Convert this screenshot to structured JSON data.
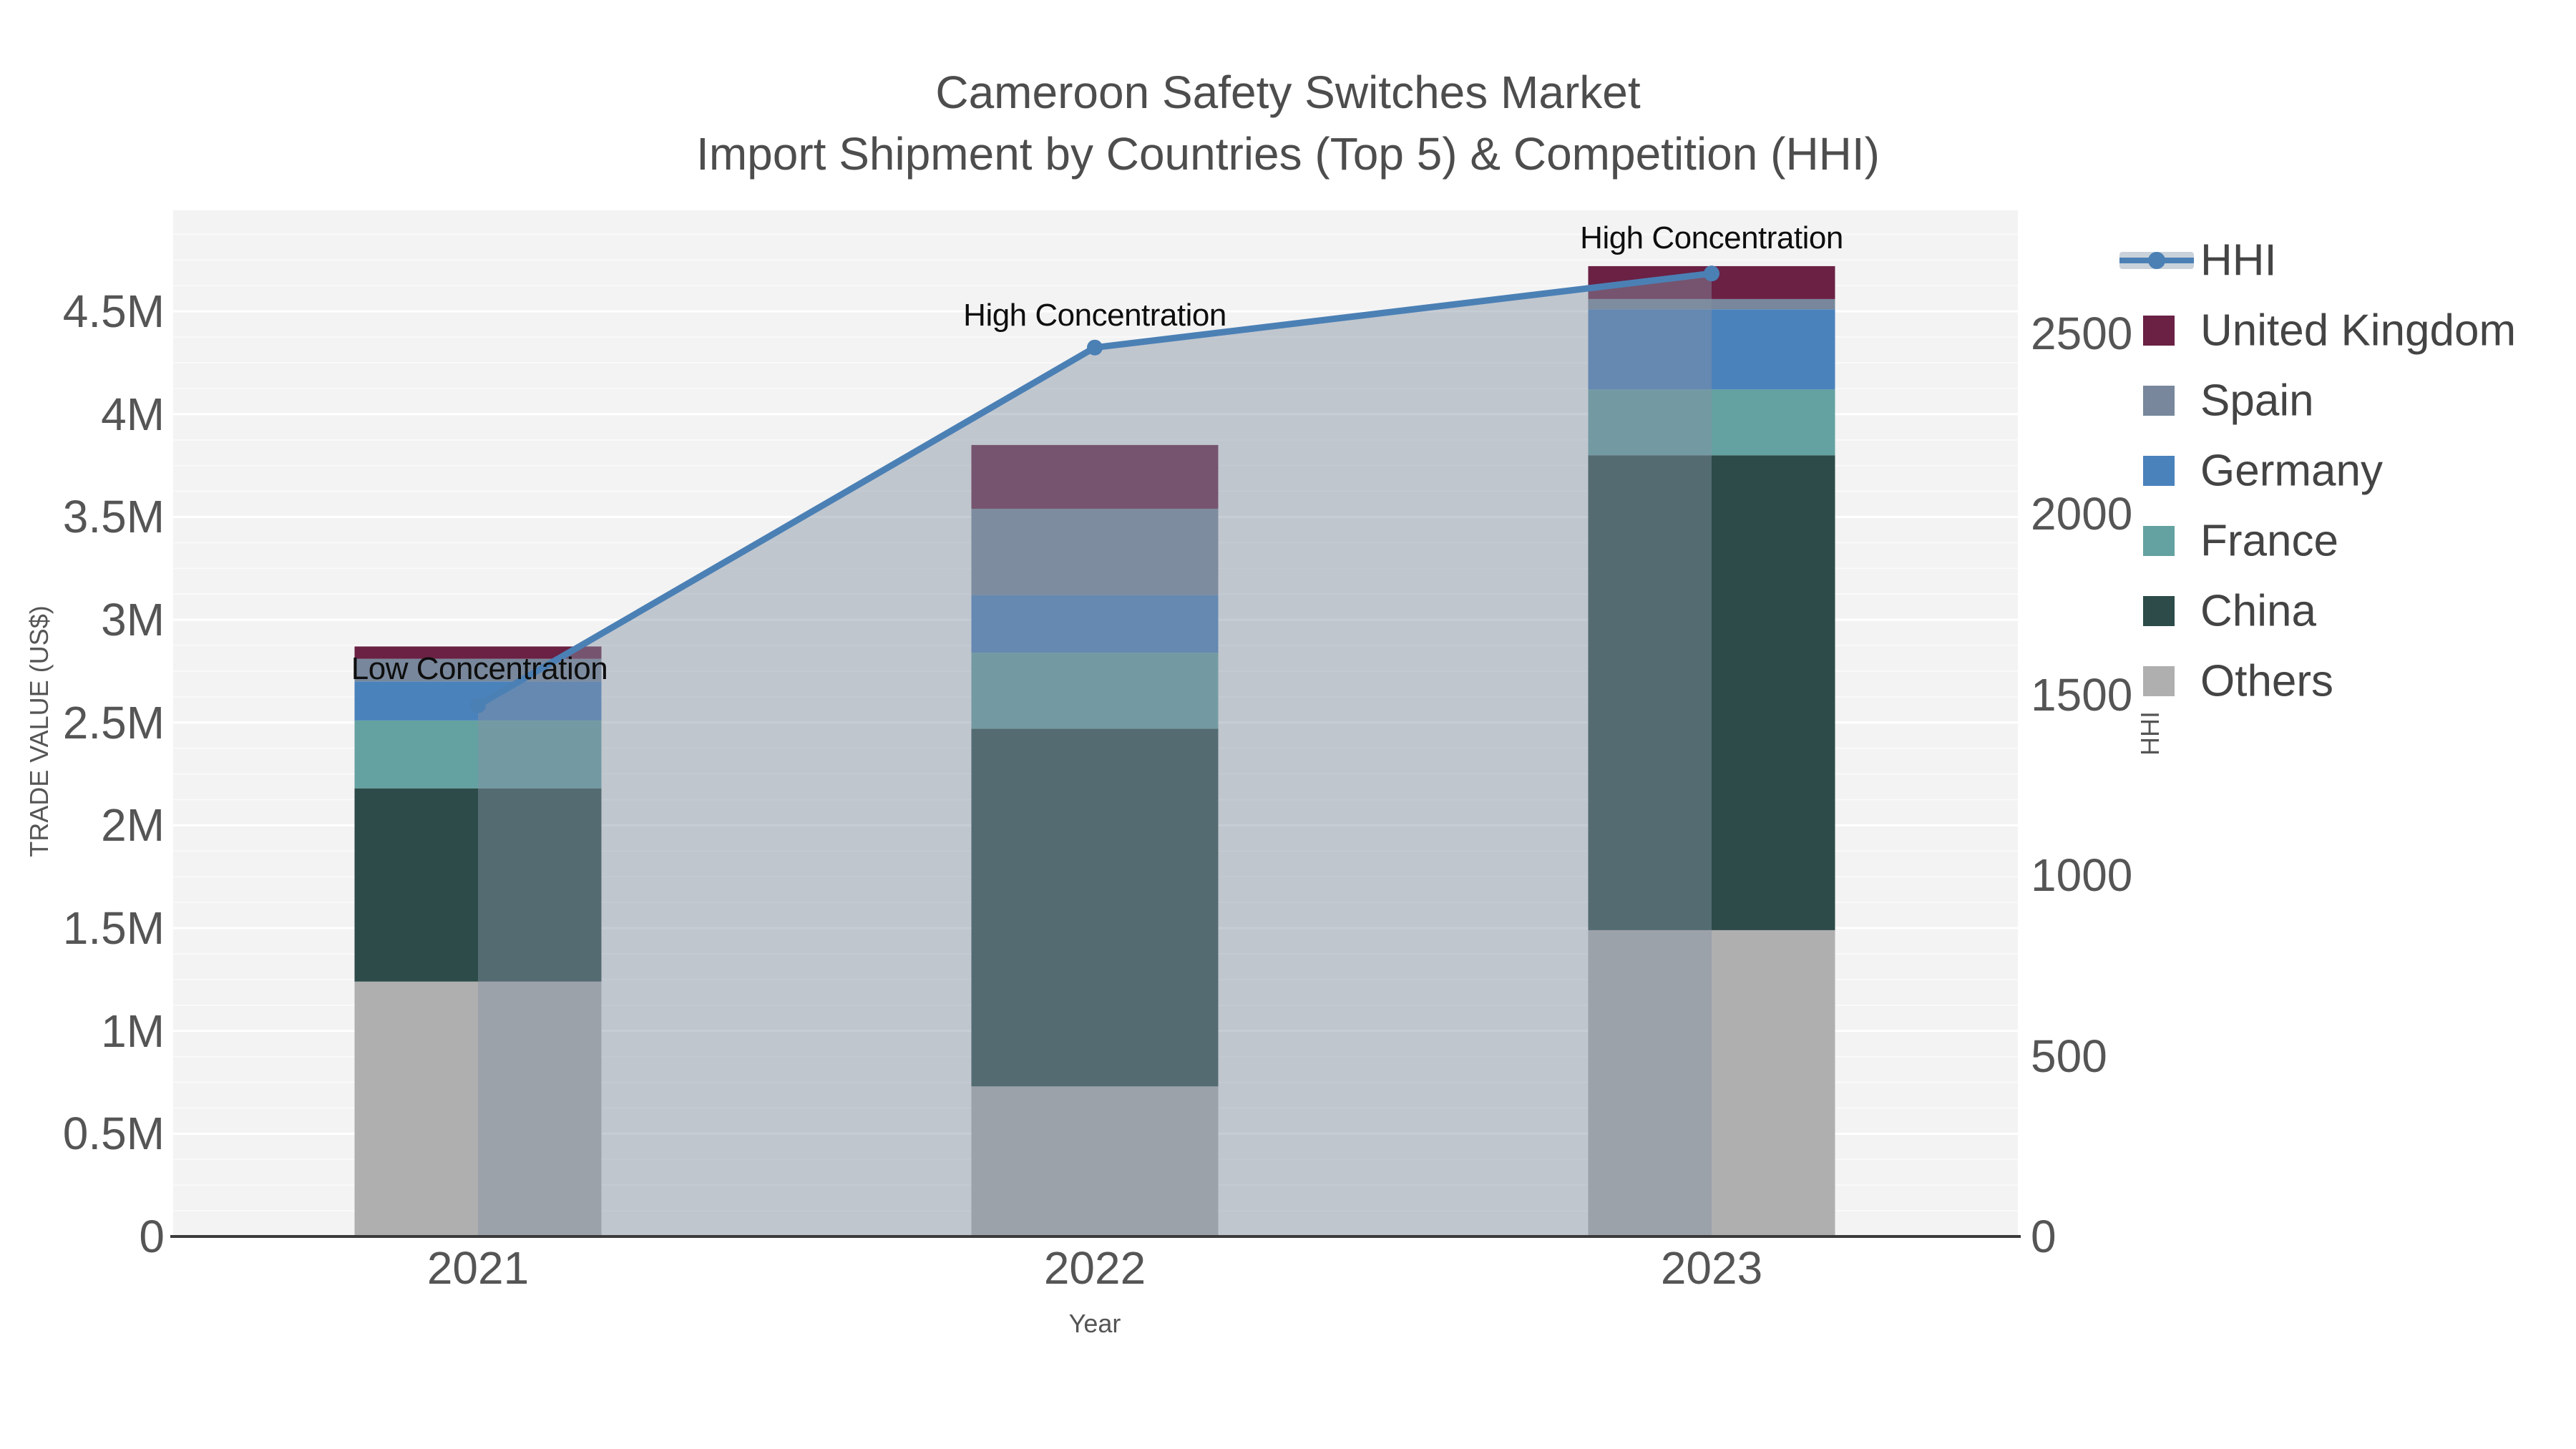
{
  "title": {
    "line1": "Cameroon Safety Switches Market",
    "line2": "Import Shipment by Countries (Top 5) & Competition (HHI)"
  },
  "axes": {
    "left": {
      "title": "TRADE VALUE (US$)",
      "ticks": [
        {
          "value": 0,
          "label": "0"
        },
        {
          "value": 500000,
          "label": "0.5M"
        },
        {
          "value": 1000000,
          "label": "1M"
        },
        {
          "value": 1500000,
          "label": "1.5M"
        },
        {
          "value": 2000000,
          "label": "2M"
        },
        {
          "value": 2500000,
          "label": "2.5M"
        },
        {
          "value": 3000000,
          "label": "3M"
        },
        {
          "value": 3500000,
          "label": "3.5M"
        },
        {
          "value": 4000000,
          "label": "4M"
        },
        {
          "value": 4500000,
          "label": "4.5M"
        }
      ]
    },
    "right": {
      "title": "HHI",
      "ticks": [
        {
          "value": 0,
          "label": "0"
        },
        {
          "value": 500,
          "label": "500"
        },
        {
          "value": 1000,
          "label": "1000"
        },
        {
          "value": 1500,
          "label": "1500"
        },
        {
          "value": 2000,
          "label": "2000"
        },
        {
          "value": 2500,
          "label": "2500"
        }
      ]
    },
    "x": {
      "title": "Year",
      "ticks": [
        "2021",
        "2022",
        "2023"
      ]
    }
  },
  "legend": [
    {
      "label": "HHI",
      "type": "line",
      "color": "#4B80B5"
    },
    {
      "label": "United Kingdom",
      "type": "swatch",
      "color": "#6A2144"
    },
    {
      "label": "Spain",
      "type": "swatch",
      "color": "#78879B"
    },
    {
      "label": "Germany",
      "type": "swatch",
      "color": "#4A82BC"
    },
    {
      "label": "France",
      "type": "swatch",
      "color": "#64A2A1"
    },
    {
      "label": "China",
      "type": "swatch",
      "color": "#2C4B49"
    },
    {
      "label": "Others",
      "type": "swatch",
      "color": "#AFAFAF"
    }
  ],
  "annotations": [
    {
      "text": "Low Concentration",
      "year": "2021"
    },
    {
      "text": "High Concentration",
      "year": "2022"
    },
    {
      "text": "High Concentration",
      "year": "2023"
    }
  ],
  "chart_data": {
    "type": "bar",
    "subtype": "stacked-bars-with-line",
    "title": "Cameroon Safety Switches Market — Import Shipment by Countries (Top 5) & Competition (HHI)",
    "xlabel": "Year",
    "ylabel": "TRADE VALUE (US$)",
    "y2label": "HHI",
    "categories": [
      "2021",
      "2022",
      "2023"
    ],
    "series": [
      {
        "name": "Others",
        "color": "#AFAFAF",
        "values": [
          1240000,
          730000,
          1490000
        ]
      },
      {
        "name": "China",
        "color": "#2C4B49",
        "values": [
          940000,
          1740000,
          2310000
        ]
      },
      {
        "name": "France",
        "color": "#64A2A1",
        "values": [
          330000,
          370000,
          320000
        ]
      },
      {
        "name": "Germany",
        "color": "#4A82BC",
        "values": [
          190000,
          280000,
          390000
        ]
      },
      {
        "name": "Spain",
        "color": "#78879B",
        "values": [
          110000,
          420000,
          50000
        ]
      },
      {
        "name": "United Kingdom",
        "color": "#6A2144",
        "values": [
          60000,
          310000,
          160000
        ]
      }
    ],
    "totals": [
      2870000,
      3850000,
      4720000
    ],
    "line": {
      "name": "HHI",
      "color": "#4B80B5",
      "fill_color": "rgba(132,146,163,0.46)",
      "values": [
        1470,
        2460,
        2665
      ],
      "axis": "right"
    },
    "ylim": [
      0,
      5000000
    ],
    "y2lim": [
      0,
      2840
    ],
    "grid": "on",
    "legend_position": "right",
    "plot_bg": "#F3F3F3"
  }
}
